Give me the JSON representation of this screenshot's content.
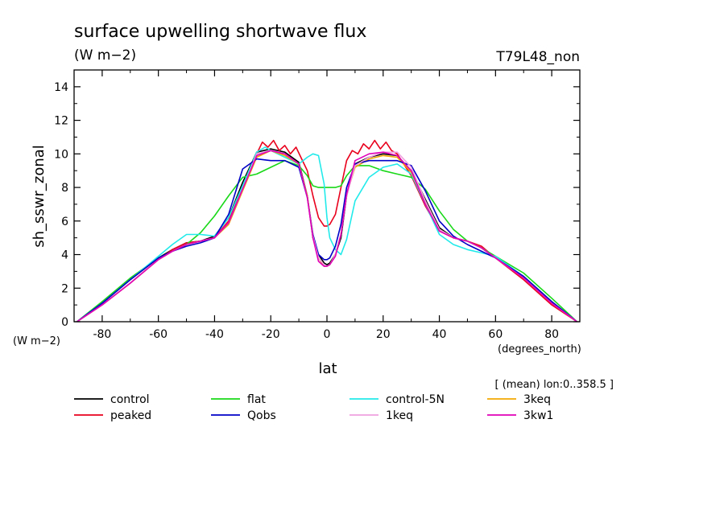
{
  "figure": {
    "title": "surface upwelling shortwave flux",
    "units_top": "(W m−2)",
    "run_label": "T79L48_non",
    "y_units_label": "(W m−2)",
    "x_units_label": "(degrees_north)",
    "xlabel": "lat",
    "ylabel": "sh_sswr_zonal",
    "averaging_note": "[ (mean) lon:0..358.5 ]"
  },
  "chart_data": {
    "type": "line",
    "title": "surface upwelling shortwave flux",
    "xlabel": "lat",
    "ylabel": "sh_sswr_zonal",
    "xlim": [
      -90,
      90
    ],
    "ylim": [
      0,
      15
    ],
    "x_ticks": [
      -80,
      -60,
      -40,
      -20,
      0,
      20,
      40,
      60,
      80
    ],
    "y_ticks": [
      0,
      2,
      4,
      6,
      8,
      10,
      12,
      14
    ],
    "x_tick_labels": [
      "-80",
      "-60",
      "-40",
      "-20",
      "0",
      "20",
      "40",
      "60",
      "80"
    ],
    "y_tick_labels": [
      "0",
      "2",
      "4",
      "6",
      "8",
      "10",
      "12",
      "14"
    ],
    "grid": false,
    "legend_position": "bottom",
    "series": [
      {
        "name": "control",
        "color": "#000000",
        "x": [
          -89,
          -80,
          -70,
          -60,
          -55,
          -50,
          -45,
          -40,
          -35,
          -30,
          -25,
          -20,
          -15,
          -10,
          -7,
          -5,
          -3,
          -1,
          0,
          1,
          3,
          5,
          7,
          10,
          15,
          20,
          25,
          30,
          35,
          40,
          45,
          50,
          55,
          60,
          70,
          80,
          89
        ],
        "y": [
          0,
          1.1,
          2.5,
          3.8,
          4.3,
          4.7,
          4.8,
          5.1,
          6.2,
          8.3,
          10.1,
          10.3,
          10.1,
          9.5,
          7.5,
          5.0,
          4.0,
          3.5,
          3.4,
          3.5,
          4.0,
          5.0,
          7.5,
          9.4,
          9.8,
          10.0,
          9.9,
          9.0,
          7.3,
          5.6,
          5.0,
          4.8,
          4.4,
          3.8,
          2.7,
          1.2,
          0
        ]
      },
      {
        "name": "peaked",
        "color": "#e8001c",
        "x": [
          -89,
          -80,
          -70,
          -60,
          -55,
          -50,
          -45,
          -40,
          -35,
          -30,
          -25,
          -23,
          -21,
          -19,
          -17,
          -15,
          -13,
          -11,
          -9,
          -7,
          -5,
          -3,
          -1,
          0,
          1,
          3,
          5,
          7,
          9,
          11,
          13,
          15,
          17,
          19,
          21,
          23,
          25,
          30,
          35,
          40,
          45,
          50,
          55,
          60,
          70,
          80,
          89
        ],
        "y": [
          0,
          1.0,
          2.3,
          3.7,
          4.3,
          4.7,
          4.8,
          5.0,
          6.0,
          8.0,
          10.0,
          10.7,
          10.4,
          10.8,
          10.2,
          10.5,
          10.0,
          10.4,
          9.7,
          9.0,
          7.5,
          6.2,
          5.7,
          5.7,
          5.8,
          6.4,
          8.0,
          9.6,
          10.2,
          10.0,
          10.6,
          10.3,
          10.8,
          10.3,
          10.7,
          10.2,
          10.0,
          8.7,
          6.9,
          5.4,
          5.0,
          4.8,
          4.5,
          3.8,
          2.5,
          1.0,
          0
        ]
      },
      {
        "name": "flat",
        "color": "#18d818",
        "x": [
          -89,
          -80,
          -70,
          -60,
          -50,
          -45,
          -40,
          -35,
          -30,
          -25,
          -20,
          -15,
          -10,
          -7,
          -5,
          -3,
          0,
          3,
          5,
          7,
          10,
          15,
          20,
          25,
          30,
          35,
          40,
          45,
          50,
          55,
          60,
          70,
          80,
          89
        ],
        "y": [
          0,
          1.2,
          2.6,
          3.8,
          4.6,
          5.3,
          6.3,
          7.5,
          8.6,
          8.8,
          9.2,
          9.6,
          9.3,
          8.7,
          8.1,
          8.0,
          8.0,
          8.0,
          8.1,
          8.7,
          9.3,
          9.3,
          9.0,
          8.8,
          8.6,
          7.9,
          6.6,
          5.5,
          4.8,
          4.4,
          3.9,
          2.9,
          1.4,
          0
        ]
      },
      {
        "name": "control-5N",
        "color": "#22eaea",
        "x": [
          -89,
          -80,
          -70,
          -60,
          -55,
          -50,
          -45,
          -40,
          -35,
          -30,
          -25,
          -22,
          -20,
          -15,
          -10,
          -7,
          -5,
          -3,
          -1,
          0,
          1,
          3,
          5,
          7,
          10,
          15,
          20,
          25,
          30,
          35,
          40,
          45,
          50,
          55,
          60,
          70,
          80,
          89
        ],
        "y": [
          0,
          1.1,
          2.5,
          3.9,
          4.6,
          5.2,
          5.2,
          5.1,
          6.2,
          8.1,
          10.1,
          10.4,
          10.2,
          9.8,
          9.4,
          9.8,
          10.0,
          9.9,
          8.2,
          6.2,
          5.0,
          4.3,
          4.0,
          4.9,
          7.2,
          8.6,
          9.2,
          9.4,
          8.8,
          7.0,
          5.2,
          4.6,
          4.3,
          4.1,
          3.9,
          2.7,
          1.2,
          0
        ]
      },
      {
        "name": "3keq",
        "color": "#f2a800",
        "x": [
          -89,
          -80,
          -70,
          -60,
          -55,
          -50,
          -45,
          -40,
          -35,
          -30,
          -25,
          -20,
          -15,
          -10,
          -7,
          -5,
          -3,
          -1,
          0,
          1,
          3,
          5,
          7,
          10,
          15,
          20,
          25,
          30,
          35,
          40,
          45,
          50,
          55,
          60,
          70,
          80,
          89
        ],
        "y": [
          0,
          1.0,
          2.3,
          3.7,
          4.2,
          4.6,
          4.8,
          5.0,
          5.8,
          7.8,
          9.8,
          10.2,
          9.9,
          9.4,
          7.5,
          5.2,
          3.8,
          3.3,
          3.3,
          3.4,
          4.0,
          5.2,
          7.6,
          9.2,
          9.7,
          9.9,
          9.8,
          8.9,
          7.1,
          5.5,
          5.0,
          4.8,
          4.4,
          3.8,
          2.6,
          1.1,
          0
        ]
      },
      {
        "name": "Qobs",
        "color": "#0000c8",
        "x": [
          -89,
          -80,
          -70,
          -60,
          -55,
          -50,
          -45,
          -40,
          -35,
          -30,
          -25,
          -20,
          -15,
          -10,
          -7,
          -5,
          -3,
          -1,
          0,
          1,
          3,
          5,
          7,
          10,
          15,
          20,
          25,
          30,
          35,
          40,
          45,
          50,
          55,
          60,
          70,
          80,
          89
        ],
        "y": [
          0,
          1.1,
          2.5,
          3.8,
          4.2,
          4.5,
          4.7,
          5.0,
          6.4,
          9.1,
          9.7,
          9.6,
          9.6,
          9.2,
          7.4,
          5.2,
          4.0,
          3.7,
          3.7,
          3.8,
          4.5,
          5.8,
          8.0,
          9.4,
          9.6,
          9.6,
          9.6,
          9.3,
          7.8,
          6.0,
          5.1,
          4.6,
          4.2,
          3.8,
          2.7,
          1.2,
          0
        ]
      },
      {
        "name": "1keq",
        "color": "#f0a0e0",
        "x": [
          -89,
          -80,
          -70,
          -60,
          -55,
          -50,
          -45,
          -40,
          -35,
          -30,
          -25,
          -20,
          -15,
          -10,
          -7,
          -5,
          -3,
          -1,
          0,
          1,
          3,
          5,
          7,
          10,
          15,
          20,
          25,
          30,
          35,
          40,
          45,
          50,
          55,
          60,
          70,
          80,
          89
        ],
        "y": [
          0,
          1.0,
          2.3,
          3.7,
          4.2,
          4.6,
          4.8,
          5.0,
          5.9,
          7.9,
          10.0,
          10.2,
          10.0,
          9.4,
          7.4,
          5.1,
          3.8,
          3.4,
          3.3,
          3.4,
          4.0,
          5.2,
          7.5,
          9.3,
          9.8,
          10.1,
          10.1,
          9.2,
          7.2,
          5.5,
          5.0,
          4.8,
          4.4,
          3.8,
          2.6,
          1.1,
          0
        ]
      },
      {
        "name": "3kw1",
        "color": "#e000b8",
        "x": [
          -89,
          -80,
          -70,
          -60,
          -55,
          -50,
          -45,
          -40,
          -35,
          -30,
          -25,
          -20,
          -15,
          -10,
          -7,
          -5,
          -3,
          -1,
          0,
          1,
          3,
          5,
          7,
          10,
          15,
          20,
          25,
          30,
          35,
          40,
          45,
          50,
          55,
          60,
          70,
          80,
          89
        ],
        "y": [
          0,
          1.0,
          2.3,
          3.7,
          4.2,
          4.6,
          4.8,
          5.0,
          5.9,
          7.9,
          9.9,
          10.2,
          10.0,
          9.4,
          7.4,
          5.0,
          3.6,
          3.3,
          3.3,
          3.4,
          3.9,
          5.2,
          7.6,
          9.6,
          10.0,
          10.1,
          9.9,
          9.0,
          7.0,
          5.4,
          5.0,
          4.8,
          4.4,
          3.8,
          2.6,
          1.1,
          0
        ]
      }
    ]
  },
  "legend": [
    {
      "name": "control",
      "color": "#000000"
    },
    {
      "name": "flat",
      "color": "#18d818"
    },
    {
      "name": "control-5N",
      "color": "#22eaea"
    },
    {
      "name": "3keq",
      "color": "#f2a800"
    },
    {
      "name": "peaked",
      "color": "#e8001c"
    },
    {
      "name": "Qobs",
      "color": "#0000c8"
    },
    {
      "name": "1keq",
      "color": "#f0a0e0"
    },
    {
      "name": "3kw1",
      "color": "#e000b8"
    }
  ]
}
